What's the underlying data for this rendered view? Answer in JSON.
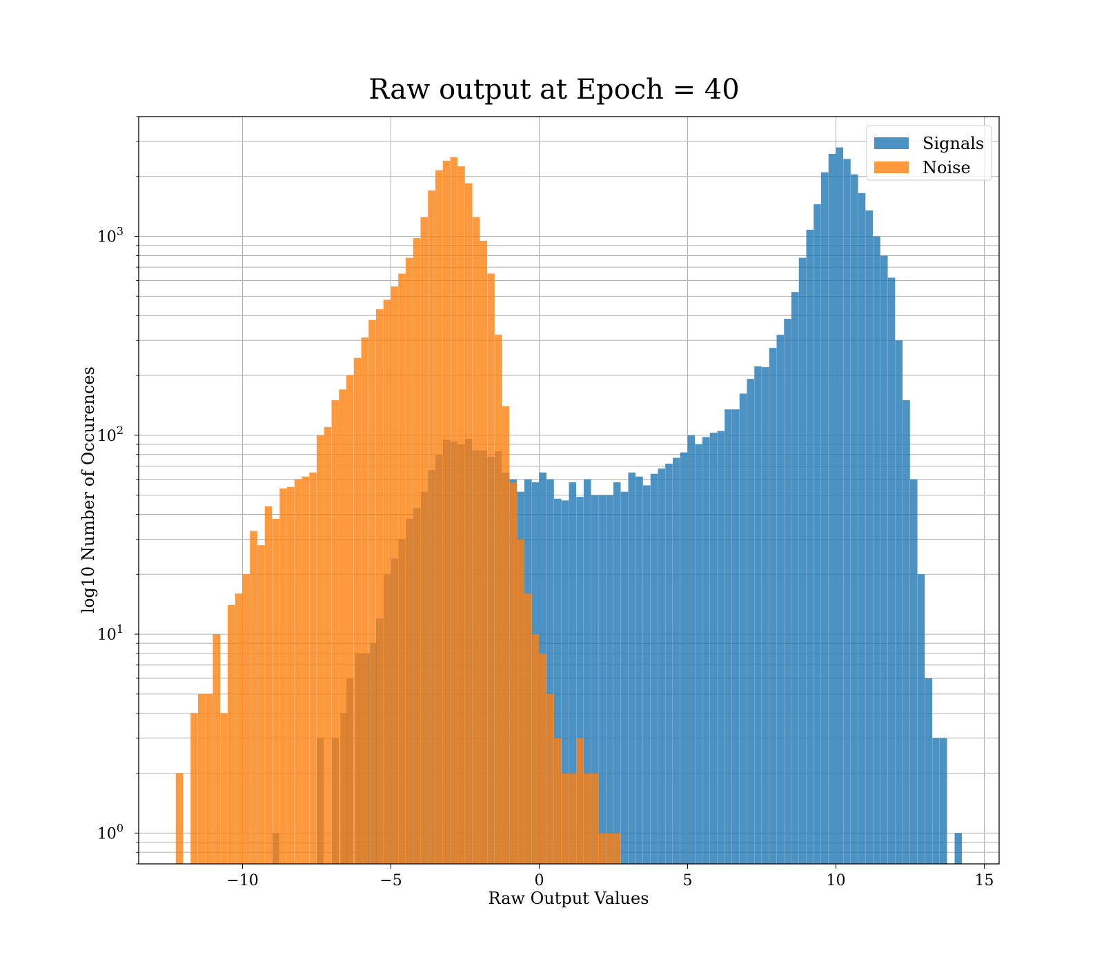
{
  "chart_data": {
    "type": "bar",
    "subtype": "histogram",
    "title": "Raw output at Epoch = 40",
    "xlabel": "Raw Output Values",
    "ylabel": "log10 Number of Occurences",
    "yscale": "log",
    "xlim": [
      -13.5,
      15.5
    ],
    "ylim": [
      0.7,
      4000
    ],
    "xticks": [
      -10,
      -5,
      0,
      5,
      10,
      15
    ],
    "xtick_labels": [
      "−10",
      "−5",
      "0",
      "5",
      "10",
      "15"
    ],
    "ytick_labels": [
      {
        "base": "10",
        "exp": "0",
        "value": 1
      },
      {
        "base": "10",
        "exp": "1",
        "value": 10
      },
      {
        "base": "10",
        "exp": "2",
        "value": 100
      },
      {
        "base": "10",
        "exp": "3",
        "value": 1000
      }
    ],
    "grid": true,
    "legend": "top-right",
    "bin_width": 0.245,
    "series": [
      {
        "name": "Signals",
        "color": "#1f77b4",
        "alpha": 0.8,
        "bins": [
          [
            -9.0,
            1
          ],
          [
            -7.5,
            3
          ],
          [
            -7.0,
            3
          ],
          [
            -6.7,
            4
          ],
          [
            -6.5,
            6
          ],
          [
            -6.2,
            8
          ],
          [
            -5.95,
            8
          ],
          [
            -5.7,
            9
          ],
          [
            -5.5,
            12
          ],
          [
            -5.25,
            20
          ],
          [
            -5.0,
            24
          ],
          [
            -4.75,
            30
          ],
          [
            -4.5,
            38
          ],
          [
            -4.25,
            43
          ],
          [
            -4.0,
            52
          ],
          [
            -3.75,
            67
          ],
          [
            -3.5,
            80
          ],
          [
            -3.25,
            95
          ],
          [
            -3.0,
            93
          ],
          [
            -2.75,
            90
          ],
          [
            -2.5,
            96
          ],
          [
            -2.25,
            84
          ],
          [
            -2.0,
            84
          ],
          [
            -1.75,
            78
          ],
          [
            -1.5,
            83
          ],
          [
            -1.25,
            65
          ],
          [
            -1.0,
            60
          ],
          [
            -0.75,
            52
          ],
          [
            -0.5,
            60
          ],
          [
            -0.25,
            58
          ],
          [
            0.0,
            65
          ],
          [
            0.25,
            60
          ],
          [
            0.5,
            48
          ],
          [
            0.75,
            47
          ],
          [
            1.0,
            58
          ],
          [
            1.25,
            49
          ],
          [
            1.5,
            60
          ],
          [
            1.75,
            50
          ],
          [
            2.0,
            50
          ],
          [
            2.25,
            50
          ],
          [
            2.5,
            58
          ],
          [
            2.75,
            52
          ],
          [
            3.0,
            65
          ],
          [
            3.25,
            62
          ],
          [
            3.5,
            56
          ],
          [
            3.75,
            64
          ],
          [
            4.0,
            68
          ],
          [
            4.25,
            72
          ],
          [
            4.5,
            77
          ],
          [
            4.75,
            82
          ],
          [
            5.0,
            100
          ],
          [
            5.25,
            90
          ],
          [
            5.5,
            98
          ],
          [
            5.75,
            103
          ],
          [
            6.0,
            105
          ],
          [
            6.25,
            135
          ],
          [
            6.5,
            135
          ],
          [
            6.75,
            162
          ],
          [
            7.0,
            192
          ],
          [
            7.25,
            222
          ],
          [
            7.5,
            220
          ],
          [
            7.75,
            275
          ],
          [
            8.0,
            320
          ],
          [
            8.25,
            385
          ],
          [
            8.5,
            525
          ],
          [
            8.75,
            780
          ],
          [
            9.0,
            1080
          ],
          [
            9.25,
            1450
          ],
          [
            9.5,
            2100
          ],
          [
            9.75,
            2600
          ],
          [
            10.0,
            2800
          ],
          [
            10.25,
            2450
          ],
          [
            10.5,
            2050
          ],
          [
            10.75,
            1650
          ],
          [
            11.0,
            1350
          ],
          [
            11.25,
            1000
          ],
          [
            11.5,
            800
          ],
          [
            11.75,
            620
          ],
          [
            12.0,
            300
          ],
          [
            12.25,
            150
          ],
          [
            12.5,
            60
          ],
          [
            12.75,
            20
          ],
          [
            13.0,
            6
          ],
          [
            13.25,
            3
          ],
          [
            13.5,
            3
          ],
          [
            14.0,
            1
          ]
        ]
      },
      {
        "name": "Noise",
        "color": "#ff7f0e",
        "alpha": 0.8,
        "bins": [
          [
            -12.25,
            2
          ],
          [
            -11.75,
            4
          ],
          [
            -11.5,
            5
          ],
          [
            -11.25,
            5
          ],
          [
            -11.0,
            10
          ],
          [
            -10.75,
            4
          ],
          [
            -10.5,
            14
          ],
          [
            -10.25,
            16
          ],
          [
            -10.0,
            20
          ],
          [
            -9.75,
            33
          ],
          [
            -9.5,
            28
          ],
          [
            -9.25,
            44
          ],
          [
            -9.0,
            38
          ],
          [
            -8.75,
            54
          ],
          [
            -8.5,
            55
          ],
          [
            -8.25,
            60
          ],
          [
            -8.0,
            62
          ],
          [
            -7.75,
            65
          ],
          [
            -7.5,
            100
          ],
          [
            -7.25,
            110
          ],
          [
            -7.0,
            150
          ],
          [
            -6.75,
            170
          ],
          [
            -6.5,
            200
          ],
          [
            -6.25,
            245
          ],
          [
            -6.0,
            310
          ],
          [
            -5.75,
            380
          ],
          [
            -5.5,
            430
          ],
          [
            -5.25,
            480
          ],
          [
            -5.0,
            560
          ],
          [
            -4.75,
            650
          ],
          [
            -4.5,
            780
          ],
          [
            -4.25,
            980
          ],
          [
            -4.0,
            1250
          ],
          [
            -3.75,
            1700
          ],
          [
            -3.5,
            2150
          ],
          [
            -3.25,
            2400
          ],
          [
            -3.0,
            2500
          ],
          [
            -2.75,
            2250
          ],
          [
            -2.5,
            1850
          ],
          [
            -2.25,
            1250
          ],
          [
            -2.0,
            950
          ],
          [
            -1.75,
            650
          ],
          [
            -1.5,
            320
          ],
          [
            -1.25,
            140
          ],
          [
            -1.0,
            58
          ],
          [
            -0.75,
            30
          ],
          [
            -0.5,
            16
          ],
          [
            -0.25,
            10
          ],
          [
            0.0,
            8
          ],
          [
            0.25,
            5
          ],
          [
            0.5,
            3
          ],
          [
            0.75,
            2
          ],
          [
            1.0,
            2
          ],
          [
            1.25,
            3
          ],
          [
            1.5,
            2
          ],
          [
            1.75,
            2
          ],
          [
            2.0,
            1
          ],
          [
            2.25,
            1
          ],
          [
            2.5,
            1
          ]
        ]
      }
    ]
  }
}
